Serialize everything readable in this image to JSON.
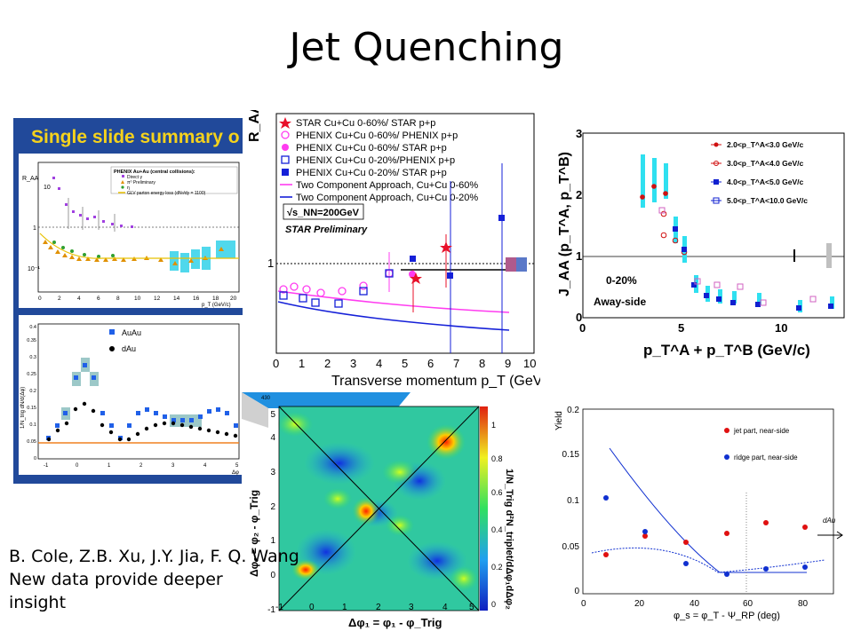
{
  "slide": {
    "title": "Jet Quenching",
    "caption": [
      "B. Cole, Z.B. Xu, J.Y. Jia, F. Q. Wang",
      "New data provide deeper",
      "insight"
    ]
  },
  "phenix_summary": {
    "banner": "Single slide summary o",
    "legend_title": "PHENIX Au+Au (central collisions):",
    "legend_items": [
      "Direct γ",
      "π⁰ Preliminary",
      "η",
      "GLV parton energy loss (dNᵍ/dy = 1100)"
    ],
    "ylabel": "R_AA",
    "xlabel": "p_T (GeV/c)",
    "x_ticks": [
      "0",
      "2",
      "4",
      "6",
      "8",
      "10",
      "12",
      "14",
      "16",
      "18",
      "20"
    ],
    "y_ticks": [
      "10",
      "1",
      "10⁻¹"
    ],
    "lower_legend": [
      "AuAu",
      "dAu"
    ],
    "lower_ylabel": "1/N_trig dN/d(Δφ)",
    "lower_x_ticks": [
      "-1",
      "0",
      "1",
      "2",
      "3",
      "4",
      "5"
    ],
    "lower_y_ticks": [
      "0",
      "0.05",
      "0.1",
      "0.15",
      "0.2",
      "0.25",
      "0.3",
      "0.35",
      "0.4"
    ],
    "lower_xlabel": "Δφ",
    "colors": {
      "banner_bg": "#1d5aa8",
      "banner_text": "#f5d21c",
      "frame": "#21499a"
    }
  },
  "star_raa": {
    "legend": [
      "STAR Cu+Cu 0-60%/ STAR p+p",
      "PHENIX Cu+Cu 0-60%/ PHENIX p+p",
      "PHENIX Cu+Cu 0-60%/ STAR p+p",
      "PHENIX Cu+Cu 0-20%/PHENIX p+p",
      "PHENIX Cu+Cu 0-20%/ STAR p+p",
      "Two Component Approach, Cu+Cu 0-60%",
      "Two Component Approach, Cu+Cu 0-20%"
    ],
    "energy": "√s_NN=200GeV",
    "preliminary": "STAR Preliminary",
    "ylabel": "R_AA",
    "xlabel": "Transverse momentum p_T (GeV/c)",
    "x_ticks": [
      "0",
      "1",
      "2",
      "3",
      "4",
      "5",
      "6",
      "7",
      "8",
      "9",
      "10"
    ],
    "y_tick": "1",
    "colors": {
      "star": "#e8102a",
      "phenix_060": "#ff3cf0",
      "phenix_020": "#1520d8",
      "band": "#b05a8c"
    }
  },
  "jaa": {
    "ylabel": "J_AA (p_T^A, p_T^B)",
    "xlabel": "p_T^A + p_T^B (GeV/c)",
    "x_ticks": [
      "0",
      "5",
      "10"
    ],
    "y_ticks": [
      "0",
      "1",
      "2",
      "3"
    ],
    "legend": [
      "2.0<p_T^A<3.0 GeV/c",
      "3.0<p_T^A<4.0 GeV/c",
      "4.0<p_T^A<5.0 GeV/c",
      "5.0<p_T^A<10.0 GeV/c"
    ],
    "centrality": "0-20%",
    "side": "Away-side",
    "colors": {
      "band": "#2fe0f0"
    }
  },
  "correlation": {
    "xlabel": "Δφ₁ = φ₁ - φ_Trig",
    "ylabel": "Δφ₂ = φ₂ - φ_Trig",
    "zlabel": "1/N_Trig d²N_triplet/dΔφ₁dΔφ₂",
    "x_ticks": [
      "-1",
      "0",
      "1",
      "2",
      "3",
      "4",
      "5"
    ],
    "y_ticks": [
      "-1",
      "0",
      "1",
      "2",
      "3",
      "4",
      "5"
    ],
    "z_ticks": [
      "0",
      "0.2",
      "0.4",
      "0.6",
      "0.8",
      "1"
    ],
    "surface_label": "430"
  },
  "yield": {
    "ylabel": "Yield",
    "xlabel": "φ_s = φ_T - Ψ_RP (deg)",
    "x_ticks": [
      "0",
      "20",
      "40",
      "60",
      "80"
    ],
    "y_ticks": [
      "0",
      "0.05",
      "0.1",
      "0.15",
      "0.2"
    ],
    "legend": [
      "jet part, near-side",
      "ridge part, near-side"
    ],
    "annotation": "dAu",
    "colors": {
      "jet": "#e01010",
      "ridge": "#1030d0"
    }
  },
  "chart_data": [
    {
      "type": "scatter",
      "title": "",
      "xlabel": "p_T (GeV/c)",
      "ylabel": "R_AA",
      "xlim": [
        0,
        10
      ],
      "ylim": [
        0.3,
        2.0
      ],
      "series": [
        {
          "name": "STAR Cu+Cu 0-60%/ STAR p+p",
          "x": [
            5.5,
            5.6,
            6.9
          ],
          "y": [
            0.95,
            0.88,
            1.07
          ]
        },
        {
          "name": "PHENIX Cu+Cu 0-60%/ PHENIX p+p",
          "x": [
            0.3,
            0.8,
            1.3,
            1.8,
            2.3,
            2.8,
            3.5,
            4.5,
            5.5
          ],
          "y": [
            0.72,
            0.74,
            0.76,
            0.73,
            0.74,
            0.7,
            0.73,
            0.85,
            0.85
          ]
        },
        {
          "name": "PHENIX Cu+Cu 0-20%/PHENIX p+p",
          "x": [
            0.3,
            0.8,
            1.3,
            1.8,
            2.3,
            2.8,
            3.5,
            4.5,
            5.5
          ],
          "y": [
            0.66,
            0.64,
            0.65,
            0.61,
            0.63,
            0.6,
            0.68,
            0.83,
            0.82
          ]
        },
        {
          "name": "PHENIX Cu+Cu 0-20%/ STAR p+p",
          "x": [
            5.5,
            7.0,
            9.5
          ],
          "y": [
            0.96,
            0.82,
            1.52
          ]
        },
        {
          "name": "Two Component Approach, Cu+Cu 0-60%",
          "x": [
            0,
            2,
            4,
            6,
            8,
            10
          ],
          "y": [
            0.72,
            0.68,
            0.64,
            0.61,
            0.59,
            0.58
          ]
        },
        {
          "name": "Two Component Approach, Cu+Cu 0-20%",
          "x": [
            0,
            2,
            4,
            6,
            8,
            10
          ],
          "y": [
            0.62,
            0.56,
            0.52,
            0.48,
            0.46,
            0.45
          ]
        }
      ]
    },
    {
      "type": "scatter",
      "title": "",
      "xlabel": "p_T^A + p_T^B (GeV/c)",
      "ylabel": "J_AA (p_T^A, p_T^B)",
      "xlim": [
        0,
        13
      ],
      "ylim": [
        0,
        3
      ],
      "series": [
        {
          "name": "2.0<p_T^A<3.0 GeV/c",
          "x": [
            3.0,
            3.5,
            4.0
          ],
          "y": [
            1.98,
            2.12,
            2.0
          ]
        },
        {
          "name": "3.0<p_T^A<4.0 GeV/c",
          "x": [
            4.0,
            4.5,
            5.0
          ],
          "y": [
            1.68,
            1.38,
            0.95
          ]
        },
        {
          "name": "4.0<p_T^A<5.0 GeV/c",
          "x": [
            5.0,
            5.5,
            6.0,
            6.5,
            7.0,
            7.5,
            8.0
          ],
          "y": [
            0.8,
            0.35,
            0.25,
            0.2,
            0.18,
            0.17,
            0.16
          ]
        },
        {
          "name": "5.0<p_T^A<10.0 GeV/c",
          "x": [
            6.0,
            7.0,
            8.0,
            9.0,
            10.0,
            11.0,
            12.0
          ],
          "y": [
            0.35,
            0.3,
            0.25,
            0.22,
            0.2,
            0.28,
            0.25
          ]
        }
      ]
    },
    {
      "type": "scatter",
      "title": "",
      "xlabel": "φ_s = φ_T - Ψ_RP (deg)",
      "ylabel": "Yield",
      "xlim": [
        0,
        90
      ],
      "ylim": [
        0,
        0.2
      ],
      "series": [
        {
          "name": "jet part, near-side",
          "x": [
            7.5,
            22.5,
            37.5,
            52.5,
            67.5,
            82.5
          ],
          "y": [
            0.042,
            0.062,
            0.055,
            0.066,
            0.076,
            0.071
          ]
        },
        {
          "name": "ridge part, near-side",
          "x": [
            7.5,
            22.5,
            37.5,
            52.5,
            67.5,
            82.5
          ],
          "y": [
            0.104,
            0.067,
            0.032,
            0.021,
            0.025,
            0.027
          ]
        }
      ]
    }
  ]
}
